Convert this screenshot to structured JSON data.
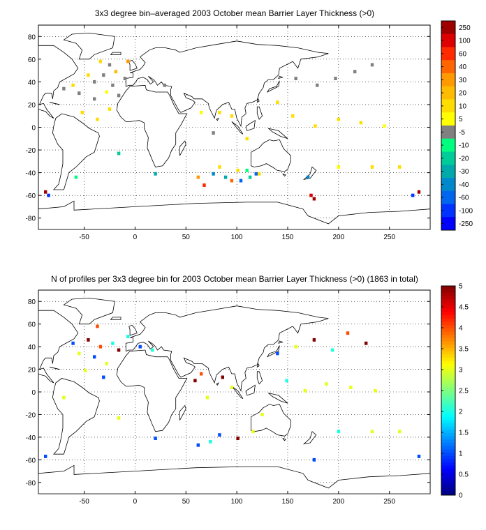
{
  "chart_data": [
    {
      "type": "heatmap",
      "title": "3x3 degree bin–averaged 2003 October mean Barrier Layer Thickness (>0)",
      "xlim": [
        -95,
        290
      ],
      "ylim": [
        -90,
        90
      ],
      "x_ticks": [
        -50,
        0,
        50,
        100,
        150,
        200,
        250
      ],
      "y_ticks": [
        80,
        60,
        40,
        20,
        0,
        -20,
        -40,
        -60,
        -80
      ],
      "grid": true,
      "colorbar": {
        "placement": "right",
        "tick_labels": [
          "250",
          "100",
          "60",
          "40",
          "30",
          "20",
          "10",
          "5",
          "-5",
          "-10",
          "-20",
          "-30",
          "-40",
          "-60",
          "-100",
          "-250"
        ],
        "band_colors": [
          "#a00000",
          "#dd0000",
          "#ff2a00",
          "#ff6600",
          "#ff9900",
          "#ffbb00",
          "#ffdd00",
          "#ffff00",
          "#808080",
          "#00ff7f",
          "#00cc99",
          "#00aaaa",
          "#0088cc",
          "#0066ee",
          "#0033ff",
          "#0000ff"
        ]
      },
      "bins": [
        {
          "lon": -31,
          "lat": 46,
          "value": 3
        },
        {
          "lon": -40,
          "lat": 40,
          "value": 2
        },
        {
          "lon": -22,
          "lat": 37,
          "value": 2
        },
        {
          "lon": -55,
          "lat": 30,
          "value": 1
        },
        {
          "lon": -40,
          "lat": 25,
          "value": 3
        },
        {
          "lon": -16,
          "lat": 28,
          "value": 2
        },
        {
          "lon": -70,
          "lat": 34,
          "value": 1
        },
        {
          "lon": -10,
          "lat": 43,
          "value": 2
        },
        {
          "lon": -25,
          "lat": 55,
          "value": 1
        },
        {
          "lon": -34,
          "lat": 58,
          "value": 12
        },
        {
          "lon": -46,
          "lat": 46,
          "value": 15
        },
        {
          "lon": -28,
          "lat": 31,
          "value": 8
        },
        {
          "lon": -19,
          "lat": 49,
          "value": 25
        },
        {
          "lon": -61,
          "lat": 37,
          "value": 12
        },
        {
          "lon": -7,
          "lat": 58,
          "value": 35
        },
        {
          "lon": -52,
          "lat": 13,
          "value": 15
        },
        {
          "lon": -37,
          "lat": 7,
          "value": 10
        },
        {
          "lon": -25,
          "lat": 16,
          "value": 12
        },
        {
          "lon": 29,
          "lat": 37,
          "value": 3
        },
        {
          "lon": 95,
          "lat": 10,
          "value": 15
        },
        {
          "lon": 65,
          "lat": 13,
          "value": 8
        },
        {
          "lon": 83,
          "lat": 13,
          "value": 12
        },
        {
          "lon": 77,
          "lat": -5,
          "value": 2
        },
        {
          "lon": 158,
          "lat": 43,
          "value": 2
        },
        {
          "lon": 179,
          "lat": 37,
          "value": 3
        },
        {
          "lon": 197,
          "lat": 43,
          "value": 2
        },
        {
          "lon": 216,
          "lat": 49,
          "value": 3
        },
        {
          "lon": 233,
          "lat": 55,
          "value": 2
        },
        {
          "lon": 155,
          "lat": 10,
          "value": 15
        },
        {
          "lon": 177,
          "lat": 1,
          "value": 12
        },
        {
          "lon": 200,
          "lat": 7,
          "value": 10
        },
        {
          "lon": 222,
          "lat": 4,
          "value": 12
        },
        {
          "lon": 245,
          "lat": 1,
          "value": 8
        },
        {
          "lon": 140,
          "lat": 22,
          "value": 15
        },
        {
          "lon": 110,
          "lat": -10,
          "value": 12
        },
        {
          "lon": 83,
          "lat": -35,
          "value": 15
        },
        {
          "lon": 101,
          "lat": -38,
          "value": 12
        },
        {
          "lon": 122,
          "lat": -41,
          "value": 10
        },
        {
          "lon": 200,
          "lat": -35,
          "value": 8
        },
        {
          "lon": 233,
          "lat": -35,
          "value": 12
        },
        {
          "lon": 260,
          "lat": -35,
          "value": 10
        },
        {
          "lon": 68,
          "lat": -51,
          "value": 80
        },
        {
          "lon": 95,
          "lat": -47,
          "value": 40
        },
        {
          "lon": 62,
          "lat": -44,
          "value": 35
        },
        {
          "lon": 173,
          "lat": -60,
          "value": 120
        },
        {
          "lon": 176,
          "lat": -63,
          "value": 300
        },
        {
          "lon": -88,
          "lat": -57,
          "value": 300
        },
        {
          "lon": 279,
          "lat": -57,
          "value": 300
        },
        {
          "lon": 104,
          "lat": -47,
          "value": -60
        },
        {
          "lon": 113,
          "lat": -44,
          "value": -20
        },
        {
          "lon": 110,
          "lat": -38,
          "value": -15
        },
        {
          "lon": 119,
          "lat": -41,
          "value": -80
        },
        {
          "lon": 89,
          "lat": -44,
          "value": -30
        },
        {
          "lon": 170,
          "lat": -44,
          "value": -45
        },
        {
          "lon": -85,
          "lat": -60,
          "value": -120
        },
        {
          "lon": 273,
          "lat": -60,
          "value": -150
        },
        {
          "lon": -58,
          "lat": -44,
          "value": -15
        },
        {
          "lon": -16,
          "lat": -23,
          "value": -20
        },
        {
          "lon": 20,
          "lat": -41,
          "value": -30
        },
        {
          "lon": 77,
          "lat": -41,
          "value": -50
        }
      ]
    },
    {
      "type": "heatmap",
      "title": "N of profiles per 3x3 degree bin for 2003 October mean Barrier Layer Thickness (>0) (1863 in total)",
      "xlim": [
        -95,
        290
      ],
      "ylim": [
        -90,
        90
      ],
      "x_ticks": [
        -50,
        0,
        50,
        100,
        150,
        200,
        250
      ],
      "y_ticks": [
        80,
        60,
        40,
        20,
        0,
        -20,
        -40,
        -60,
        -80
      ],
      "grid": true,
      "colorbar": {
        "placement": "right",
        "tick_labels": [
          "5",
          "4.5",
          "4",
          "3.5",
          "3",
          "2.5",
          "2",
          "1.5",
          "1",
          "0.5",
          "0"
        ],
        "range": [
          0,
          5
        ],
        "colormap": "jet"
      },
      "bins": [
        {
          "lon": -46,
          "lat": 46,
          "value": 5
        },
        {
          "lon": -34,
          "lat": 40,
          "value": 4
        },
        {
          "lon": -22,
          "lat": 43,
          "value": 2
        },
        {
          "lon": -55,
          "lat": 34,
          "value": 3
        },
        {
          "lon": -40,
          "lat": 31,
          "value": 1
        },
        {
          "lon": -28,
          "lat": 25,
          "value": 3
        },
        {
          "lon": -16,
          "lat": 37,
          "value": 5
        },
        {
          "lon": -61,
          "lat": 43,
          "value": 1
        },
        {
          "lon": -7,
          "lat": 49,
          "value": 2
        },
        {
          "lon": -37,
          "lat": 58,
          "value": 4
        },
        {
          "lon": -49,
          "lat": 19,
          "value": 3
        },
        {
          "lon": -31,
          "lat": 13,
          "value": 1
        },
        {
          "lon": 5,
          "lat": 40,
          "value": 1
        },
        {
          "lon": 17,
          "lat": 37,
          "value": 2
        },
        {
          "lon": 59,
          "lat": 10,
          "value": 5
        },
        {
          "lon": 65,
          "lat": 16,
          "value": 4
        },
        {
          "lon": 86,
          "lat": 13,
          "value": 5
        },
        {
          "lon": 95,
          "lat": 4,
          "value": 3
        },
        {
          "lon": 71,
          "lat": -5,
          "value": 3
        },
        {
          "lon": 140,
          "lat": 34,
          "value": 1
        },
        {
          "lon": 158,
          "lat": 40,
          "value": 3
        },
        {
          "lon": 176,
          "lat": 46,
          "value": 5
        },
        {
          "lon": 194,
          "lat": 37,
          "value": 2
        },
        {
          "lon": 209,
          "lat": 52,
          "value": 4
        },
        {
          "lon": 227,
          "lat": 43,
          "value": 5
        },
        {
          "lon": 149,
          "lat": 10,
          "value": 2
        },
        {
          "lon": 167,
          "lat": 1,
          "value": 3
        },
        {
          "lon": 188,
          "lat": 7,
          "value": 3
        },
        {
          "lon": 212,
          "lat": 4,
          "value": 3
        },
        {
          "lon": 236,
          "lat": 1,
          "value": 3
        },
        {
          "lon": 83,
          "lat": -38,
          "value": 1
        },
        {
          "lon": 101,
          "lat": -41,
          "value": 5
        },
        {
          "lon": 116,
          "lat": -35,
          "value": 3
        },
        {
          "lon": 200,
          "lat": -35,
          "value": 2
        },
        {
          "lon": 233,
          "lat": -35,
          "value": 3
        },
        {
          "lon": 260,
          "lat": -35,
          "value": 3
        },
        {
          "lon": 62,
          "lat": -47,
          "value": 1
        },
        {
          "lon": 74,
          "lat": -44,
          "value": 2
        },
        {
          "lon": 176,
          "lat": -60,
          "value": 1
        },
        {
          "lon": -88,
          "lat": -57,
          "value": 1
        },
        {
          "lon": 279,
          "lat": -57,
          "value": 1
        },
        {
          "lon": 20,
          "lat": -41,
          "value": 1
        },
        {
          "lon": -16,
          "lat": -23,
          "value": 3
        },
        {
          "lon": -70,
          "lat": -5,
          "value": 3
        },
        {
          "lon": 125,
          "lat": -20,
          "value": 3
        }
      ]
    }
  ]
}
